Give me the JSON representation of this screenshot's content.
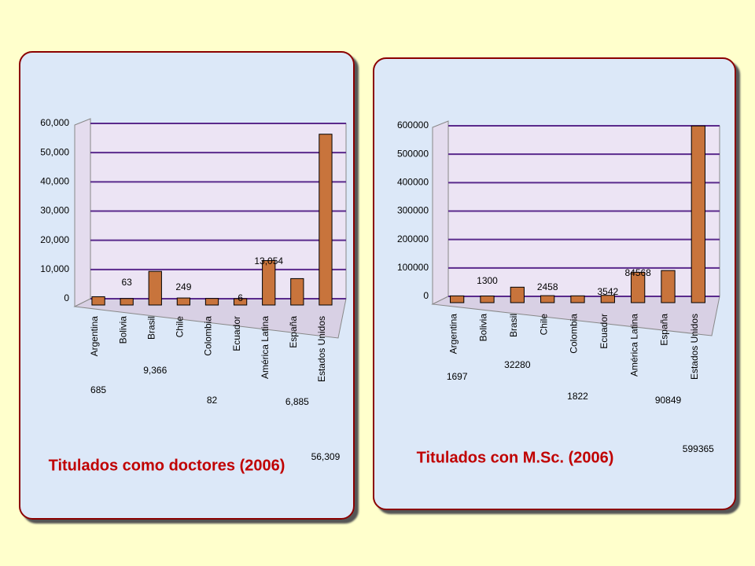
{
  "chart_data": [
    {
      "type": "bar",
      "title": "Titulados como doctores (2006)",
      "categories": [
        "Argentina",
        "Bolivia",
        "Brasil",
        "Chile",
        "Colombia",
        "Ecuador",
        "América Latina",
        "España",
        "Estados Unidos"
      ],
      "values": [
        685,
        63,
        9366,
        249,
        82,
        6,
        13054,
        6885,
        56309
      ],
      "value_labels": [
        "685",
        "63",
        "9,366",
        "249",
        "82",
        "6",
        "13,054",
        "6,885",
        "56,309"
      ],
      "color": "#c8743c",
      "grid": true,
      "ylim": [
        0,
        60000
      ],
      "yticks": [
        0,
        {
          "value": 10000,
          "label": "10,000"
        },
        {
          "value": 20000,
          "label": "20,000"
        },
        {
          "value": 30000,
          "label": "30,000"
        },
        {
          "value": 40000,
          "label": "40,000"
        },
        {
          "value": 50000,
          "label": "50,000"
        },
        {
          "value": 60000,
          "label": "60,000"
        }
      ]
    },
    {
      "type": "bar",
      "title": "Titulados con  M.Sc. (2006)",
      "categories": [
        "Argentina",
        "Bolivia",
        "Brasil",
        "Chile",
        "Colombia",
        "Ecuador",
        "América Latina",
        "España",
        "Estados Unidos"
      ],
      "values": [
        1697,
        1300,
        32280,
        2458,
        1822,
        3542,
        84568,
        90849,
        599365
      ],
      "color": "#c8743c",
      "grid": true,
      "ylim": [
        0,
        600000
      ],
      "yticks": [
        0,
        100000,
        200000,
        300000,
        400000,
        500000,
        600000
      ]
    }
  ]
}
